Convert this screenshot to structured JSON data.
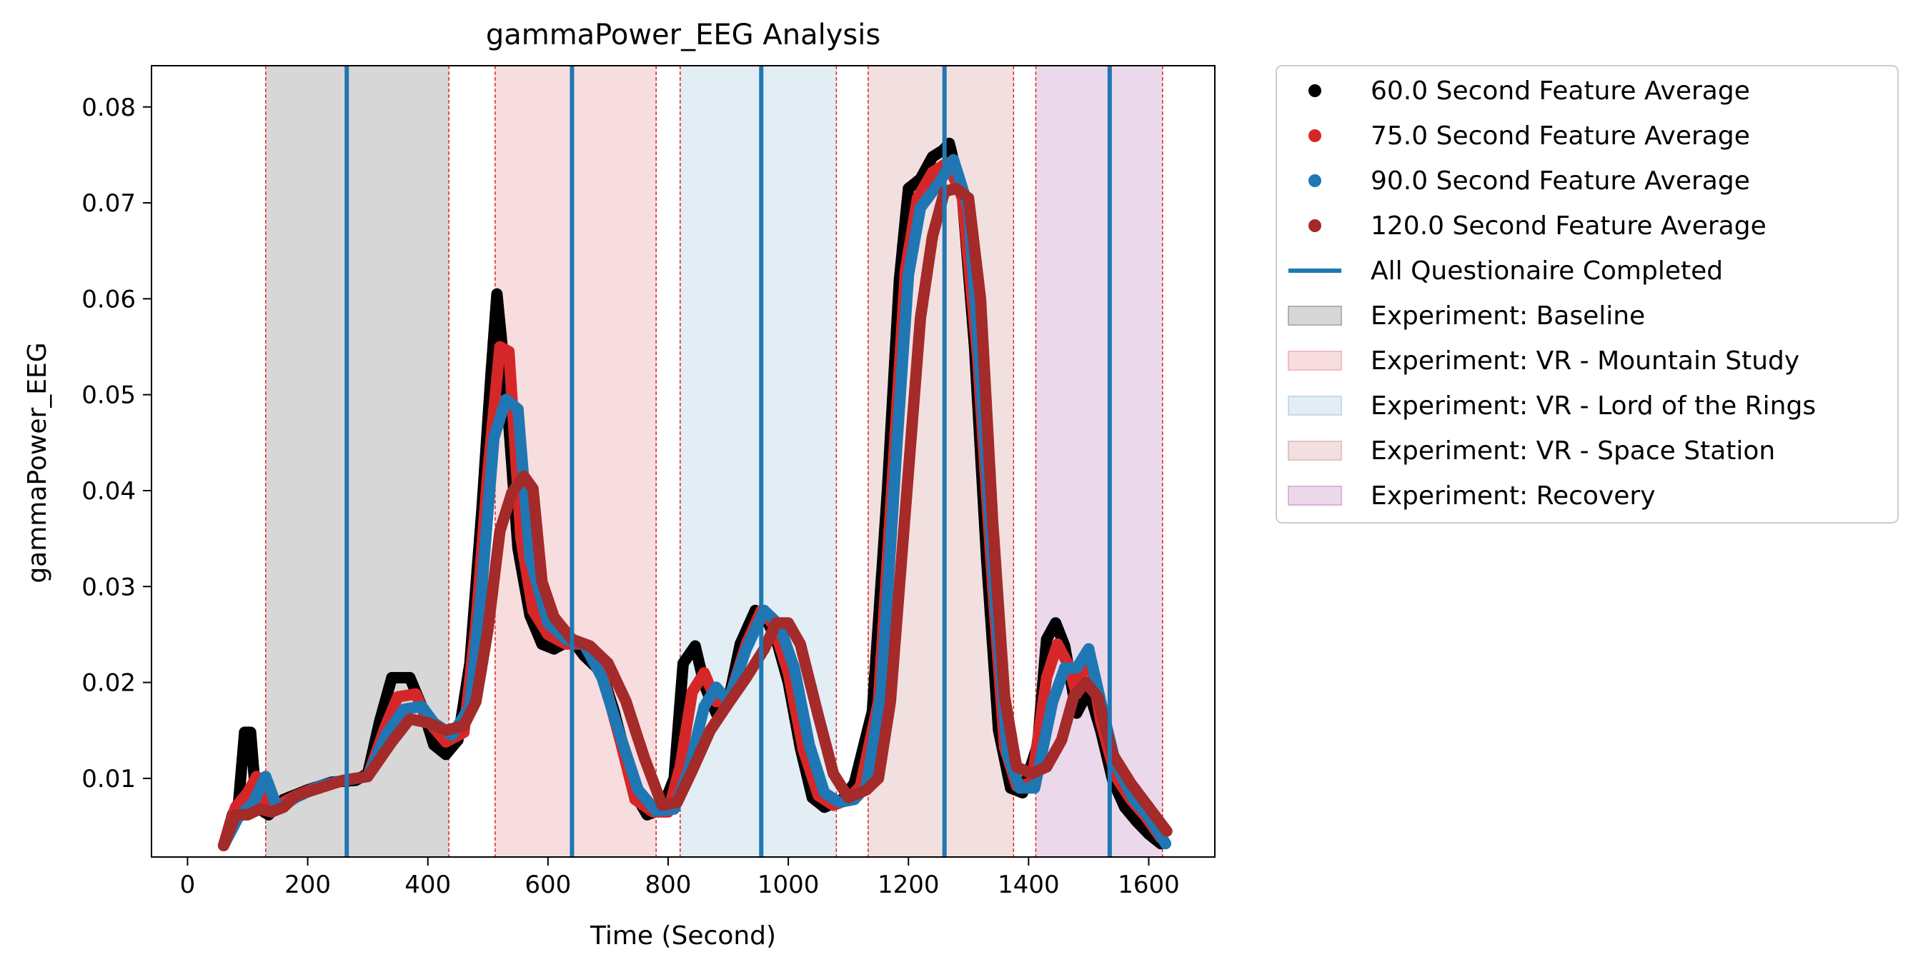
{
  "chart_data": {
    "type": "scatter",
    "title": "gammaPower_EEG Analysis",
    "xlabel": "Time (Second)",
    "ylabel": "gammaPower_EEG",
    "xlim": [
      -60,
      1710
    ],
    "ylim": [
      0.0018,
      0.0843
    ],
    "xticks": [
      0,
      200,
      400,
      600,
      800,
      1000,
      1200,
      1400,
      1600
    ],
    "xtick_labels": [
      "0",
      "200",
      "400",
      "600",
      "800",
      "1000",
      "1200",
      "1400",
      "1600"
    ],
    "yticks": [
      0.01,
      0.02,
      0.03,
      0.04,
      0.05,
      0.06,
      0.07,
      0.08
    ],
    "ytick_labels": [
      "0.01",
      "0.02",
      "0.03",
      "0.04",
      "0.05",
      "0.06",
      "0.07",
      "0.08"
    ],
    "grid": false,
    "legend_position": "outside-right-top",
    "experiments": [
      {
        "name": "Experiment: Baseline",
        "start": 130,
        "end": 435,
        "color": "#b0b0b0"
      },
      {
        "name": "Experiment: VR - Mountain Study",
        "start": 512,
        "end": 780,
        "color": "#f2bcc0"
      },
      {
        "name": "Experiment: VR - Lord of the Rings",
        "start": 820,
        "end": 1080,
        "color": "#c6dbea"
      },
      {
        "name": "Experiment: VR - Space Station",
        "start": 1133,
        "end": 1375,
        "color": "#e6c2c2"
      },
      {
        "name": "Experiment: Recovery",
        "start": 1412,
        "end": 1623,
        "color": "#d8b4d8"
      }
    ],
    "questionnaire": {
      "name": "All Questionaire Completed",
      "color": "#1f77b4",
      "times": [
        265,
        640,
        955,
        1260,
        1535
      ]
    },
    "series": [
      {
        "name": "60.0 Second Feature Average",
        "color": "#000000",
        "points": [
          [
            60,
            0.003
          ],
          [
            75,
            0.0062
          ],
          [
            85,
            0.0075
          ],
          [
            95,
            0.0148
          ],
          [
            105,
            0.0148
          ],
          [
            115,
            0.007
          ],
          [
            135,
            0.0062
          ],
          [
            160,
            0.0078
          ],
          [
            200,
            0.0088
          ],
          [
            240,
            0.0096
          ],
          [
            280,
            0.0098
          ],
          [
            300,
            0.0105
          ],
          [
            320,
            0.016
          ],
          [
            340,
            0.0205
          ],
          [
            370,
            0.0205
          ],
          [
            390,
            0.0175
          ],
          [
            410,
            0.0135
          ],
          [
            430,
            0.0125
          ],
          [
            450,
            0.014
          ],
          [
            470,
            0.022
          ],
          [
            490,
            0.038
          ],
          [
            505,
            0.052
          ],
          [
            515,
            0.0605
          ],
          [
            530,
            0.051
          ],
          [
            550,
            0.034
          ],
          [
            570,
            0.027
          ],
          [
            590,
            0.024
          ],
          [
            610,
            0.0235
          ],
          [
            640,
            0.0245
          ],
          [
            660,
            0.0228
          ],
          [
            690,
            0.021
          ],
          [
            710,
            0.017
          ],
          [
            730,
            0.0122
          ],
          [
            750,
            0.0078
          ],
          [
            765,
            0.0062
          ],
          [
            790,
            0.0068
          ],
          [
            810,
            0.01
          ],
          [
            825,
            0.022
          ],
          [
            845,
            0.0238
          ],
          [
            860,
            0.0198
          ],
          [
            880,
            0.0168
          ],
          [
            900,
            0.018
          ],
          [
            920,
            0.024
          ],
          [
            945,
            0.0275
          ],
          [
            960,
            0.027
          ],
          [
            980,
            0.0245
          ],
          [
            1000,
            0.02
          ],
          [
            1020,
            0.0132
          ],
          [
            1040,
            0.008
          ],
          [
            1060,
            0.007
          ],
          [
            1090,
            0.0078
          ],
          [
            1110,
            0.0095
          ],
          [
            1140,
            0.017
          ],
          [
            1165,
            0.04
          ],
          [
            1185,
            0.062
          ],
          [
            1200,
            0.0715
          ],
          [
            1220,
            0.0725
          ],
          [
            1240,
            0.0748
          ],
          [
            1258,
            0.0755
          ],
          [
            1268,
            0.0762
          ],
          [
            1290,
            0.0705
          ],
          [
            1310,
            0.055
          ],
          [
            1330,
            0.033
          ],
          [
            1350,
            0.015
          ],
          [
            1370,
            0.009
          ],
          [
            1390,
            0.0085
          ],
          [
            1415,
            0.0135
          ],
          [
            1430,
            0.0245
          ],
          [
            1445,
            0.0262
          ],
          [
            1460,
            0.0238
          ],
          [
            1480,
            0.0168
          ],
          [
            1500,
            0.0192
          ],
          [
            1520,
            0.015
          ],
          [
            1540,
            0.0098
          ],
          [
            1560,
            0.007
          ],
          [
            1580,
            0.0055
          ],
          [
            1600,
            0.0042
          ],
          [
            1620,
            0.0032
          ]
        ]
      },
      {
        "name": "75.0 Second Feature Average",
        "color": "#d62728",
        "points": [
          [
            60,
            0.003
          ],
          [
            80,
            0.007
          ],
          [
            100,
            0.0085
          ],
          [
            115,
            0.0102
          ],
          [
            130,
            0.0072
          ],
          [
            150,
            0.0072
          ],
          [
            180,
            0.0082
          ],
          [
            220,
            0.0092
          ],
          [
            260,
            0.0098
          ],
          [
            300,
            0.0102
          ],
          [
            330,
            0.0155
          ],
          [
            350,
            0.0185
          ],
          [
            380,
            0.0188
          ],
          [
            400,
            0.016
          ],
          [
            430,
            0.0138
          ],
          [
            460,
            0.0148
          ],
          [
            480,
            0.026
          ],
          [
            500,
            0.042
          ],
          [
            520,
            0.055
          ],
          [
            535,
            0.0545
          ],
          [
            555,
            0.035
          ],
          [
            575,
            0.0275
          ],
          [
            600,
            0.025
          ],
          [
            630,
            0.024
          ],
          [
            660,
            0.024
          ],
          [
            690,
            0.021
          ],
          [
            720,
            0.014
          ],
          [
            745,
            0.0078
          ],
          [
            775,
            0.0065
          ],
          [
            800,
            0.0065
          ],
          [
            820,
            0.0112
          ],
          [
            840,
            0.019
          ],
          [
            860,
            0.021
          ],
          [
            880,
            0.018
          ],
          [
            900,
            0.018
          ],
          [
            930,
            0.024
          ],
          [
            955,
            0.0275
          ],
          [
            975,
            0.026
          ],
          [
            1000,
            0.021
          ],
          [
            1025,
            0.013
          ],
          [
            1050,
            0.0082
          ],
          [
            1075,
            0.0072
          ],
          [
            1100,
            0.0078
          ],
          [
            1120,
            0.0092
          ],
          [
            1150,
            0.018
          ],
          [
            1175,
            0.043
          ],
          [
            1195,
            0.063
          ],
          [
            1215,
            0.0705
          ],
          [
            1240,
            0.0732
          ],
          [
            1265,
            0.0742
          ],
          [
            1290,
            0.0705
          ],
          [
            1315,
            0.054
          ],
          [
            1340,
            0.03
          ],
          [
            1360,
            0.0132
          ],
          [
            1380,
            0.0092
          ],
          [
            1405,
            0.0095
          ],
          [
            1430,
            0.0205
          ],
          [
            1448,
            0.024
          ],
          [
            1465,
            0.022
          ],
          [
            1480,
            0.0188
          ],
          [
            1500,
            0.0235
          ],
          [
            1520,
            0.016
          ],
          [
            1545,
            0.0102
          ],
          [
            1570,
            0.0078
          ],
          [
            1595,
            0.006
          ],
          [
            1620,
            0.0038
          ]
        ]
      },
      {
        "name": "90.0 Second Feature Average",
        "color": "#1f77b4",
        "points": [
          [
            60,
            0.003
          ],
          [
            85,
            0.006
          ],
          [
            110,
            0.0075
          ],
          [
            130,
            0.0102
          ],
          [
            150,
            0.0068
          ],
          [
            180,
            0.008
          ],
          [
            220,
            0.0092
          ],
          [
            260,
            0.0098
          ],
          [
            300,
            0.0102
          ],
          [
            330,
            0.0145
          ],
          [
            360,
            0.0172
          ],
          [
            390,
            0.0175
          ],
          [
            410,
            0.0158
          ],
          [
            440,
            0.0145
          ],
          [
            470,
            0.0175
          ],
          [
            490,
            0.03
          ],
          [
            510,
            0.0455
          ],
          [
            530,
            0.0495
          ],
          [
            550,
            0.0485
          ],
          [
            570,
            0.033
          ],
          [
            600,
            0.0262
          ],
          [
            630,
            0.0245
          ],
          [
            660,
            0.024
          ],
          [
            690,
            0.0205
          ],
          [
            720,
            0.0145
          ],
          [
            750,
            0.0088
          ],
          [
            780,
            0.0066
          ],
          [
            810,
            0.0068
          ],
          [
            835,
            0.011
          ],
          [
            860,
            0.0175
          ],
          [
            880,
            0.0195
          ],
          [
            900,
            0.018
          ],
          [
            930,
            0.0235
          ],
          [
            960,
            0.0275
          ],
          [
            985,
            0.026
          ],
          [
            1010,
            0.0215
          ],
          [
            1035,
            0.0135
          ],
          [
            1060,
            0.0085
          ],
          [
            1085,
            0.0075
          ],
          [
            1110,
            0.0078
          ],
          [
            1130,
            0.0092
          ],
          [
            1155,
            0.019
          ],
          [
            1180,
            0.044
          ],
          [
            1200,
            0.0625
          ],
          [
            1220,
            0.0695
          ],
          [
            1250,
            0.072
          ],
          [
            1275,
            0.0745
          ],
          [
            1300,
            0.0695
          ],
          [
            1320,
            0.052
          ],
          [
            1345,
            0.028
          ],
          [
            1365,
            0.0125
          ],
          [
            1385,
            0.009
          ],
          [
            1410,
            0.009
          ],
          [
            1440,
            0.018
          ],
          [
            1460,
            0.0215
          ],
          [
            1480,
            0.0215
          ],
          [
            1500,
            0.0235
          ],
          [
            1520,
            0.018
          ],
          [
            1545,
            0.0115
          ],
          [
            1575,
            0.0078
          ],
          [
            1600,
            0.006
          ],
          [
            1628,
            0.0032
          ]
        ]
      },
      {
        "name": "120.0 Second Feature Average",
        "color": "#a52a2a",
        "points": [
          [
            60,
            0.003
          ],
          [
            80,
            0.0062
          ],
          [
            100,
            0.0062
          ],
          [
            120,
            0.0068
          ],
          [
            140,
            0.0065
          ],
          [
            160,
            0.007
          ],
          [
            180,
            0.0082
          ],
          [
            220,
            0.009
          ],
          [
            260,
            0.0098
          ],
          [
            300,
            0.0102
          ],
          [
            340,
            0.0138
          ],
          [
            370,
            0.0162
          ],
          [
            400,
            0.0158
          ],
          [
            430,
            0.015
          ],
          [
            460,
            0.0155
          ],
          [
            480,
            0.018
          ],
          [
            500,
            0.0255
          ],
          [
            520,
            0.0358
          ],
          [
            540,
            0.0398
          ],
          [
            560,
            0.0415
          ],
          [
            575,
            0.0402
          ],
          [
            590,
            0.0305
          ],
          [
            610,
            0.0268
          ],
          [
            640,
            0.0245
          ],
          [
            670,
            0.0238
          ],
          [
            700,
            0.022
          ],
          [
            730,
            0.018
          ],
          [
            760,
            0.0122
          ],
          [
            790,
            0.0072
          ],
          [
            815,
            0.0075
          ],
          [
            840,
            0.0108
          ],
          [
            870,
            0.015
          ],
          [
            900,
            0.0178
          ],
          [
            930,
            0.0205
          ],
          [
            960,
            0.0235
          ],
          [
            980,
            0.0262
          ],
          [
            1000,
            0.0262
          ],
          [
            1020,
            0.024
          ],
          [
            1050,
            0.0165
          ],
          [
            1075,
            0.0105
          ],
          [
            1100,
            0.008
          ],
          [
            1130,
            0.0088
          ],
          [
            1150,
            0.01
          ],
          [
            1170,
            0.018
          ],
          [
            1195,
            0.038
          ],
          [
            1220,
            0.058
          ],
          [
            1240,
            0.0665
          ],
          [
            1260,
            0.0712
          ],
          [
            1280,
            0.0715
          ],
          [
            1300,
            0.0705
          ],
          [
            1320,
            0.06
          ],
          [
            1340,
            0.037
          ],
          [
            1360,
            0.0185
          ],
          [
            1380,
            0.0112
          ],
          [
            1405,
            0.0105
          ],
          [
            1430,
            0.0112
          ],
          [
            1455,
            0.014
          ],
          [
            1475,
            0.0185
          ],
          [
            1495,
            0.02
          ],
          [
            1515,
            0.0185
          ],
          [
            1540,
            0.0125
          ],
          [
            1570,
            0.0095
          ],
          [
            1600,
            0.007
          ],
          [
            1630,
            0.0045
          ]
        ]
      }
    ]
  }
}
